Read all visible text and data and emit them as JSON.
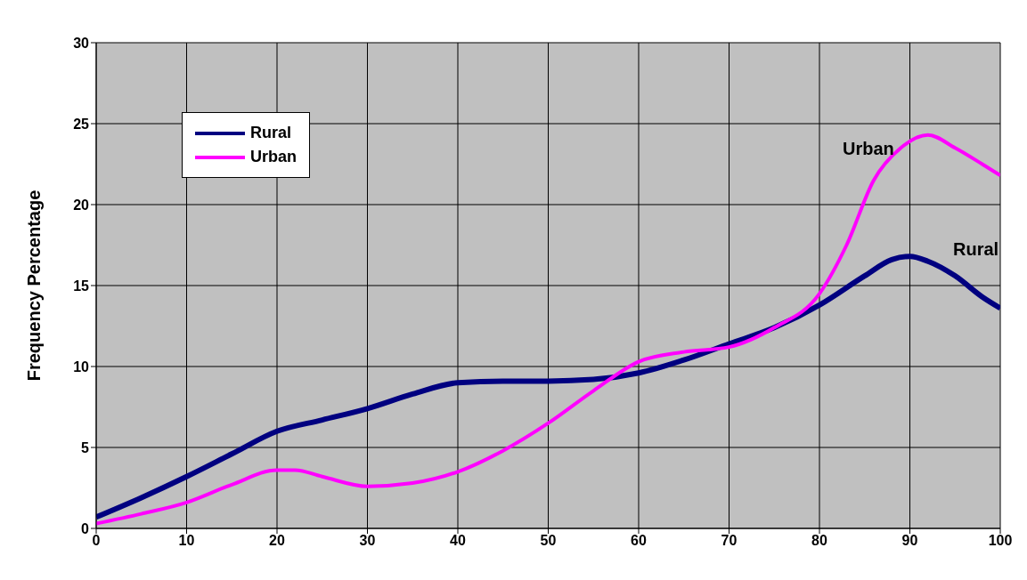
{
  "chart_data": {
    "type": "line",
    "ylabel": "Frequency Percentage",
    "xlim": [
      0,
      100
    ],
    "xticks": [
      0,
      10,
      20,
      30,
      40,
      50,
      60,
      70,
      80,
      90,
      100
    ],
    "ylim": [
      0,
      30
    ],
    "yticks": [
      0,
      5,
      10,
      15,
      20,
      25,
      30
    ],
    "grid": true,
    "legend": "top left",
    "marker": "none",
    "line_style": "solid",
    "series": [
      {
        "name": "Rural",
        "color": "#000080",
        "x": [
          0,
          5,
          10,
          15,
          20,
          25,
          30,
          35,
          40,
          45,
          50,
          55,
          60,
          65,
          70,
          75,
          80,
          85,
          88,
          90,
          92,
          95,
          98,
          100
        ],
        "values": [
          0.7,
          1.9,
          3.2,
          4.6,
          6.0,
          6.7,
          7.4,
          8.3,
          9.0,
          9.1,
          9.1,
          9.2,
          9.6,
          10.4,
          11.4,
          12.4,
          13.8,
          15.6,
          16.6,
          16.8,
          16.5,
          15.6,
          14.3,
          13.6
        ]
      },
      {
        "name": "Urban",
        "color": "#ff00ff",
        "x": [
          0,
          5,
          10,
          15,
          20,
          22,
          25,
          30,
          35,
          40,
          45,
          50,
          55,
          60,
          65,
          70,
          75,
          80,
          83,
          86,
          89,
          92,
          95,
          98,
          100
        ],
        "values": [
          0.3,
          0.9,
          1.6,
          2.7,
          3.6,
          3.6,
          3.2,
          2.6,
          2.8,
          3.5,
          4.8,
          6.5,
          8.5,
          10.3,
          10.9,
          11.2,
          12.4,
          14.5,
          17.5,
          21.5,
          23.5,
          24.3,
          23.5,
          22.5,
          21.8
        ]
      }
    ],
    "annotations": [
      "Urban",
      "Rural"
    ]
  }
}
